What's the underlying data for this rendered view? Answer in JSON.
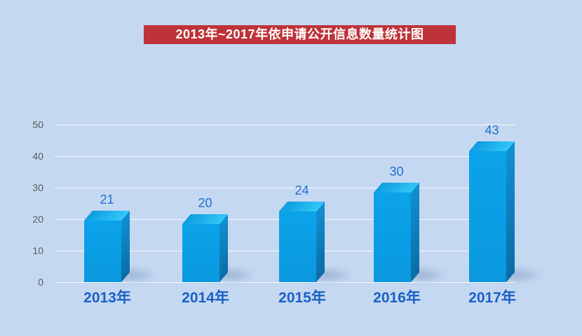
{
  "title_banner": {
    "text": "2013年~2017年依申请公开信息数量统计图"
  },
  "chart_data": {
    "type": "bar",
    "style": "3d-box-bars",
    "title": "2013年~2017年依申请公开信息数量统计图",
    "categories": [
      "2013年",
      "2014年",
      "2015年",
      "2016年",
      "2017年"
    ],
    "values": [
      21,
      20,
      24,
      30,
      43
    ],
    "xlabel": "",
    "ylabel": "",
    "ylim": [
      0,
      50
    ],
    "ytick_interval": 10,
    "yticks_display": [
      "50",
      "40",
      "30",
      "20",
      "10",
      "0"
    ],
    "grid": true,
    "legend": "none",
    "data_labels": true
  },
  "colors": {
    "background": "#c5d8f1",
    "banner_background": "#be3338",
    "banner_text": "#ffffff",
    "bar_front": "#0a9ee8",
    "bar_side": "#0b71ad",
    "bar_top_gradient_start": "#0d9be0",
    "bar_top_gradient_end": "#33c8f6",
    "value_label": "#1f6fce",
    "category_label": "#1861c6",
    "axis_tick_label": "#595959",
    "gridline": "#ffffff"
  }
}
